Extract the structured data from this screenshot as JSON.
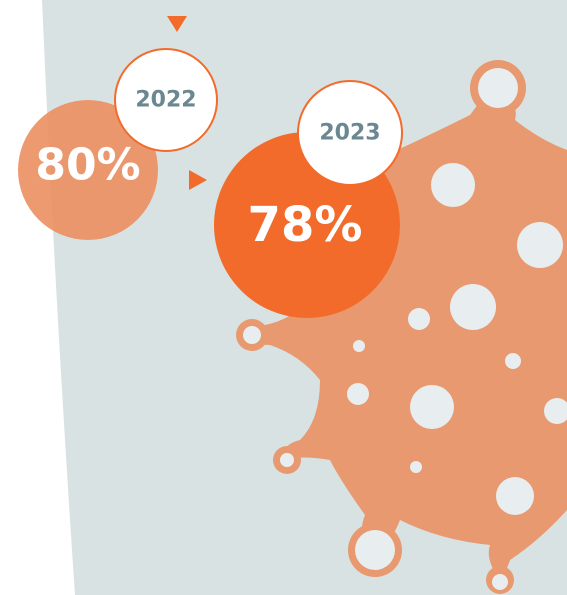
{
  "items": [
    {
      "year": "2022",
      "value": "80%"
    },
    {
      "year": "2023",
      "value": "78%"
    }
  ]
}
